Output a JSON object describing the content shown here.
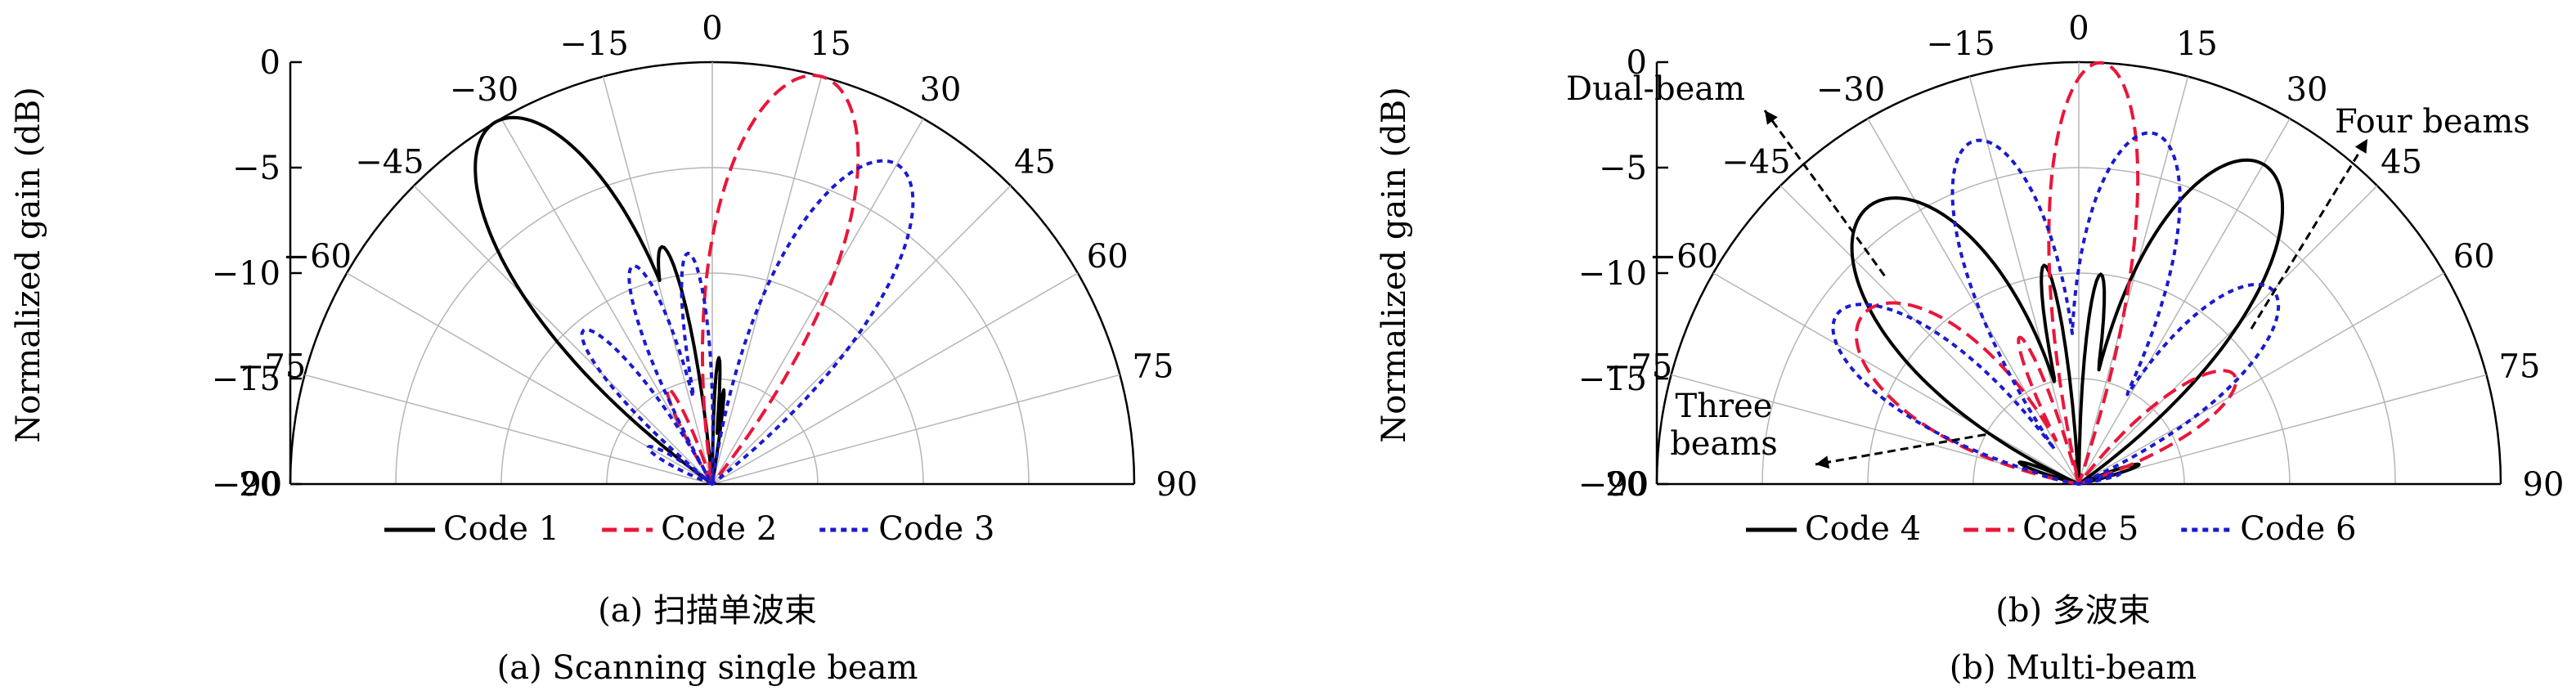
{
  "panels": [
    {
      "ylabel": "Normalized gain (dB)",
      "caption_cn": "(a) 扫描单波束",
      "caption_en": "(a) Scanning single beam",
      "legend": [
        {
          "label": "Code 1",
          "color": "#000000",
          "dash": "solid"
        },
        {
          "label": "Code 2",
          "color": "#e8173a",
          "dash": "dashed"
        },
        {
          "label": "Code 3",
          "color": "#1a1ad0",
          "dash": "dotted"
        }
      ],
      "annotations": []
    },
    {
      "ylabel": "Normalized gain (dB)",
      "caption_cn": "(b) 多波束",
      "caption_en": "(b) Multi-beam",
      "legend": [
        {
          "label": "Code 4",
          "color": "#000000",
          "dash": "solid"
        },
        {
          "label": "Code 5",
          "color": "#e8173a",
          "dash": "dashed"
        },
        {
          "label": "Code 6",
          "color": "#1a1ad0",
          "dash": "dotted"
        }
      ],
      "annotations": [
        {
          "lines": [
            "Dual-beam"
          ],
          "from_deg": -43,
          "from_db": -6.5
        },
        {
          "lines": [
            "Four beams"
          ],
          "from_deg": 48,
          "from_db": -9.0
        },
        {
          "lines": [
            "Three",
            "beams"
          ],
          "from_deg": -62,
          "from_db": -15.0
        }
      ]
    }
  ],
  "chart_data": [
    {
      "type": "polar",
      "angle_unit": "deg",
      "angle_range": [
        -90,
        90
      ],
      "angle_ticks": [
        -90,
        -75,
        -60,
        -45,
        -30,
        -15,
        0,
        15,
        30,
        45,
        60,
        75,
        90
      ],
      "radial_ticks": [
        0,
        -5,
        -10,
        -15,
        -20
      ],
      "rlim": [
        -20,
        0
      ],
      "ylabel": "Normalized gain (dB)",
      "grid": true,
      "series": [
        {
          "name": "Code 1",
          "color": "#000000",
          "dash": "solid",
          "lobes": [
            [
              -31,
              0.0,
              9
            ],
            [
              -12,
              -8.5,
              3.5
            ],
            [
              3,
              -14.0,
              2
            ],
            [
              7,
              -15.5,
              1.8
            ]
          ]
        },
        {
          "name": "Code 2",
          "color": "#e8173a",
          "dash": "dashed",
          "lobes": [
            [
              15,
              0.0,
              9
            ],
            [
              -2,
              -12.0,
              3
            ],
            [
              -25,
              -15.0,
              5
            ]
          ]
        },
        {
          "name": "Code 3",
          "color": "#1a1ad0",
          "dash": "dotted",
          "lobes": [
            [
              30,
              -2.5,
              9
            ],
            [
              -20,
              -9.0,
              5
            ],
            [
              -6,
              -9.0,
              4
            ],
            [
              -40,
              -10.5,
              6
            ],
            [
              -60,
              -16.5,
              8
            ]
          ]
        }
      ]
    },
    {
      "type": "polar",
      "angle_unit": "deg",
      "angle_range": [
        -90,
        90
      ],
      "angle_ticks": [
        -90,
        -75,
        -60,
        -45,
        -30,
        -15,
        0,
        15,
        30,
        45,
        60,
        75,
        90
      ],
      "radial_ticks": [
        0,
        -5,
        -10,
        -15,
        -20
      ],
      "rlim": [
        -20,
        0
      ],
      "ylabel": "Normalized gain (dB)",
      "grid": true,
      "series": [
        {
          "name": "Code 4",
          "color": "#000000",
          "dash": "solid",
          "lobes": [
            [
              -37,
              -3.5,
              12
            ],
            [
              30,
              -2.5,
              10
            ],
            [
              -9,
              -9.5,
              3
            ],
            [
              6,
              -10.0,
              3
            ],
            [
              -70,
              -17.0,
              5
            ],
            [
              72,
              -17.0,
              5
            ]
          ]
        },
        {
          "name": "Code 5",
          "color": "#e8173a",
          "dash": "dashed",
          "lobes": [
            [
              -52,
              -7.0,
              13
            ],
            [
              3,
              0.0,
              6
            ],
            [
              55,
              -11.0,
              10
            ],
            [
              -22,
              -12.5,
              4
            ]
          ]
        },
        {
          "name": "Code 6",
          "color": "#1a1ad0",
          "dash": "dotted",
          "lobes": [
            [
              -17,
              -3.0,
              8
            ],
            [
              12,
              -3.0,
              8
            ],
            [
              -55,
              -6.0,
              10
            ],
            [
              45,
              -7.0,
              10
            ],
            [
              -75,
              -18.0,
              6
            ],
            [
              76,
              -18.0,
              6
            ]
          ]
        }
      ]
    }
  ]
}
